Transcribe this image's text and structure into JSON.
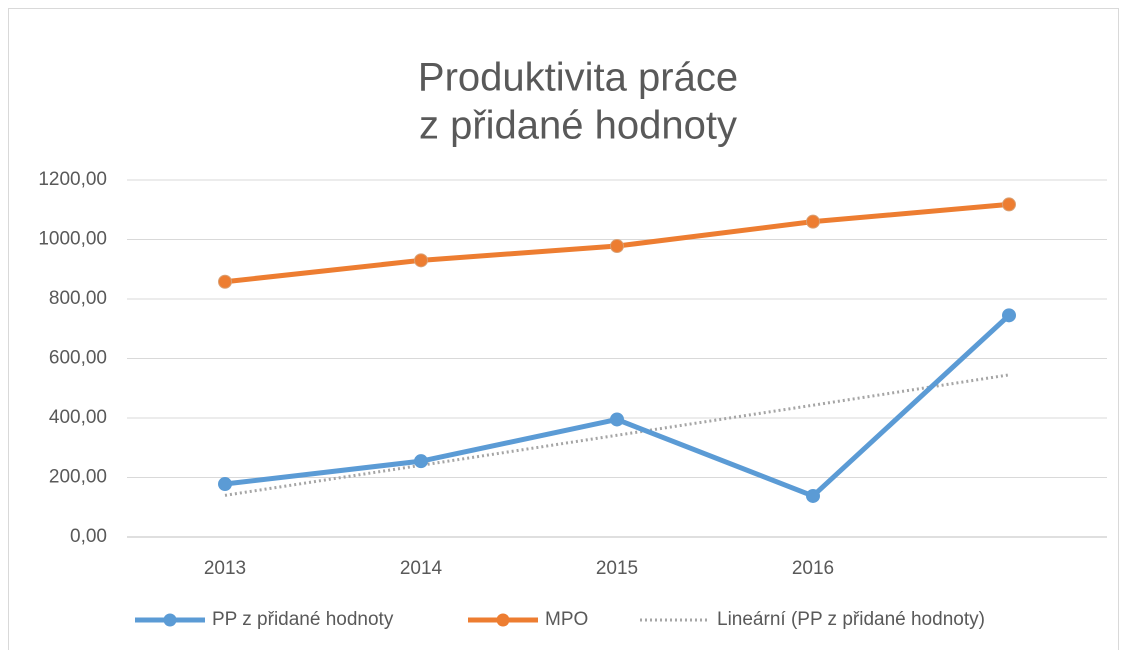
{
  "chart_data": {
    "type": "line",
    "title": [
      "Produktivita práce",
      "z přidané hodnoty"
    ],
    "categories": [
      "2013",
      "2014",
      "2015",
      "2016",
      null
    ],
    "series": [
      {
        "name": "PP z přidané hodnoty",
        "color": "#5b9bd5",
        "values": [
          178,
          255,
          395,
          138,
          745
        ],
        "markers": true,
        "style": "solid"
      },
      {
        "name": "MPO",
        "color": "#ed7d31",
        "values": [
          858,
          930,
          978,
          1060,
          1118
        ],
        "markers": true,
        "style": "solid"
      },
      {
        "name": "Lineární (PP z přidané hodnoty)",
        "color": "#a5a5a5",
        "values": [
          140,
          241,
          342,
          443,
          545
        ],
        "markers": false,
        "style": "dotted"
      }
    ],
    "ylim": [
      0,
      1200
    ],
    "yticks": [
      {
        "value": 0,
        "label": "0,00"
      },
      {
        "value": 200,
        "label": "200,00"
      },
      {
        "value": 400,
        "label": "400,00"
      },
      {
        "value": 600,
        "label": "600,00"
      },
      {
        "value": 800,
        "label": "800,00"
      },
      {
        "value": 1000,
        "label": "1000,00"
      },
      {
        "value": 1200,
        "label": "1200,00"
      }
    ],
    "grid": true,
    "legend": "bottom"
  }
}
